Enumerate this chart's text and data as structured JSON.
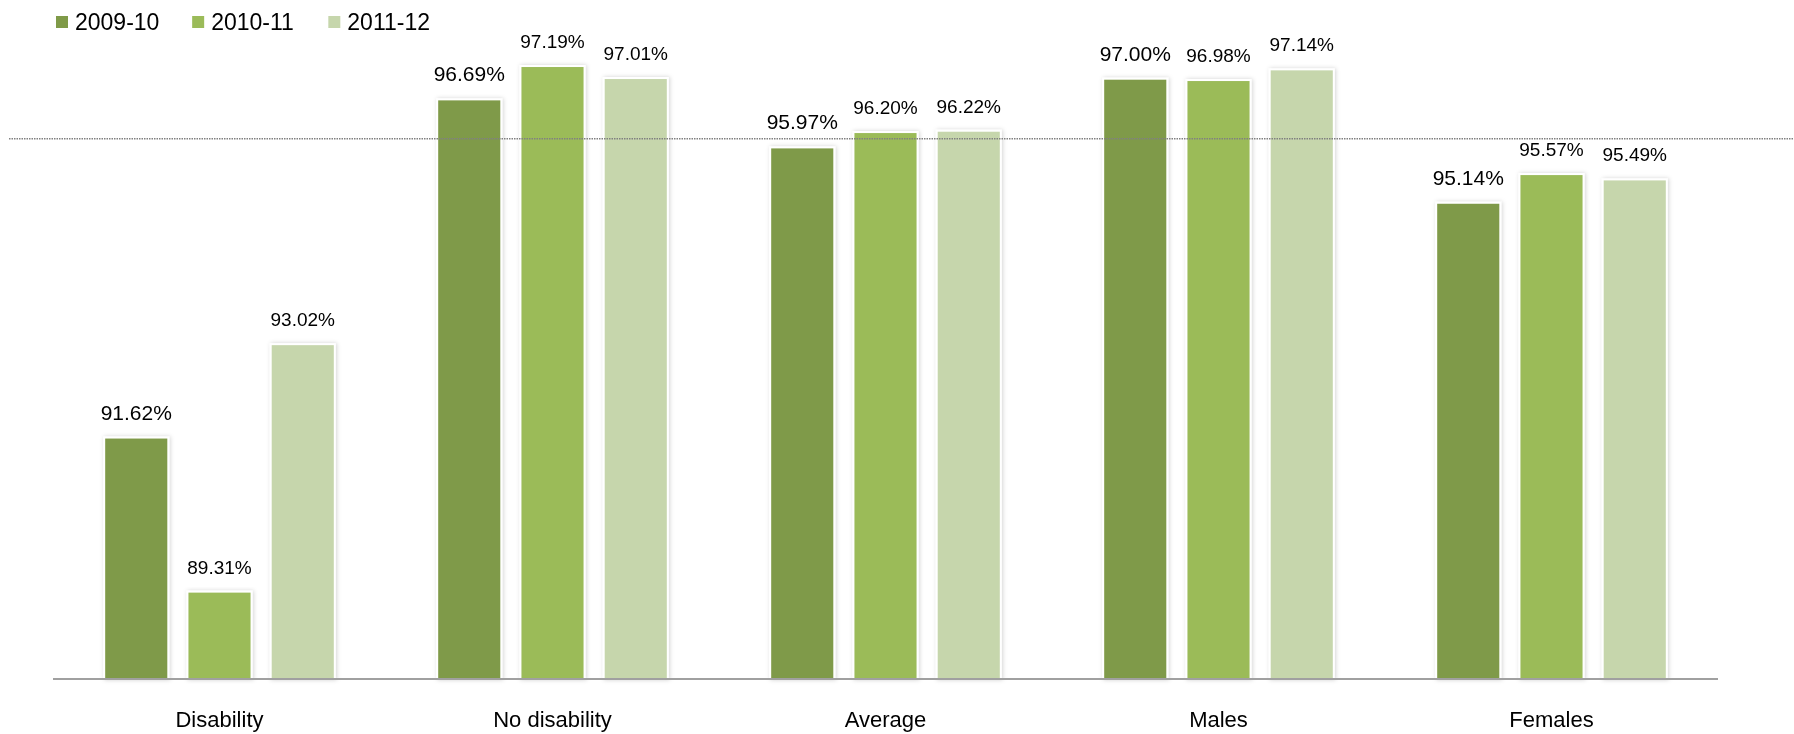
{
  "chart_data": {
    "type": "bar",
    "categories": [
      "Disability",
      "No disability",
      "Average",
      "Males",
      "Females"
    ],
    "series": [
      {
        "name": "2009-10",
        "color": "#7f9a48",
        "values": [
          91.62,
          96.69,
          95.97,
          97.0,
          95.14
        ],
        "value_labels": [
          "91.62%",
          "96.69%",
          "95.97%",
          "97.00%",
          "95.14%"
        ]
      },
      {
        "name": "2010-11",
        "color": "#9bbb59",
        "values": [
          89.31,
          97.19,
          96.2,
          96.98,
          95.57
        ],
        "value_labels": [
          "89.31%",
          "97.19%",
          "96.20%",
          "96.98%",
          "95.57%"
        ]
      },
      {
        "name": "2011-12",
        "color": "#c6d6ac",
        "values": [
          93.02,
          97.01,
          96.22,
          97.14,
          95.49
        ],
        "value_labels": [
          "93.02%",
          "97.01%",
          "96.22%",
          "97.14%",
          "95.49%"
        ]
      }
    ],
    "ylim": [
      88,
      98
    ],
    "tick_labels": "x",
    "legend": "top left",
    "ref_lines": [
      {
        "axis": "y",
        "value": 96.1,
        "color": "#808080",
        "line_style": "dotted"
      }
    ]
  }
}
